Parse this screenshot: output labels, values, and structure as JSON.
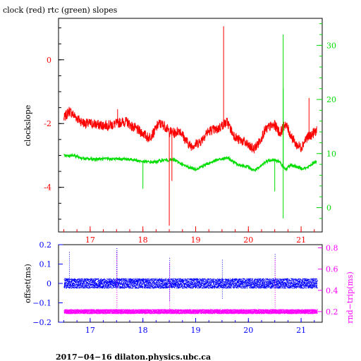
{
  "chart_data": [
    {
      "type": "line",
      "title": "clock (red) rtc (green) slopes",
      "ylabel": "clockslope",
      "y2label": "",
      "xlim": [
        16.4,
        21.4
      ],
      "ylim": [
        -5.4,
        1.3
      ],
      "y2lim": [
        -4.5,
        35
      ],
      "x_ticks": [
        "17",
        "18",
        "19",
        "20",
        "21"
      ],
      "y_ticks": [
        "0",
        "-2",
        "-4"
      ],
      "y2_ticks": [
        "0",
        "10",
        "20",
        "30"
      ],
      "colors": {
        "clock": "#ff0000",
        "rtc": "#00dd00",
        "x_axis": "#ff0000",
        "y2_axis": "#00dd00"
      },
      "series": [
        {
          "name": "clock",
          "axis": "left",
          "x": [
            16.5,
            16.6,
            16.7,
            16.8,
            16.9,
            17.0,
            17.2,
            17.4,
            17.6,
            17.7,
            17.8,
            17.9,
            18.0,
            18.1,
            18.2,
            18.3,
            18.4,
            18.5,
            18.6,
            18.7,
            18.8,
            18.9,
            19.0,
            19.1,
            19.2,
            19.3,
            19.4,
            19.5,
            19.6,
            19.7,
            19.8,
            19.9,
            20.0,
            20.1,
            20.2,
            20.3,
            20.4,
            20.5,
            20.6,
            20.7,
            20.8,
            20.9,
            21.0,
            21.1,
            21.2,
            21.3
          ],
          "values": [
            -1.85,
            -1.6,
            -1.75,
            -1.9,
            -2.0,
            -2.0,
            -2.05,
            -2.05,
            -1.95,
            -1.95,
            -2.1,
            -2.2,
            -2.3,
            -2.45,
            -2.3,
            -2.0,
            -2.05,
            -2.25,
            -2.3,
            -2.2,
            -2.5,
            -2.7,
            -2.65,
            -2.55,
            -2.3,
            -2.2,
            -2.2,
            -2.05,
            -1.95,
            -2.3,
            -2.5,
            -2.55,
            -2.7,
            -2.8,
            -2.6,
            -2.25,
            -2.1,
            -2.05,
            -2.3,
            -2.0,
            -2.35,
            -2.65,
            -2.75,
            -2.45,
            -2.35,
            -2.2
          ]
        },
        {
          "name": "rtc",
          "axis": "right",
          "x": [
            16.5,
            16.7,
            16.9,
            17.0,
            17.2,
            17.4,
            17.6,
            17.8,
            18.0,
            18.2,
            18.4,
            18.6,
            18.8,
            19.0,
            19.2,
            19.4,
            19.6,
            19.8,
            20.0,
            20.1,
            20.2,
            20.3,
            20.4,
            20.5,
            20.6,
            20.7,
            20.8,
            20.9,
            21.0,
            21.1,
            21.2,
            21.3
          ],
          "values": [
            9.6,
            9.6,
            9.0,
            9.0,
            9.0,
            9.0,
            9.0,
            8.9,
            8.5,
            8.4,
            8.8,
            8.8,
            7.7,
            7.1,
            8.0,
            8.8,
            9.2,
            8.0,
            7.5,
            6.9,
            7.3,
            8.3,
            8.8,
            8.8,
            8.4,
            7.0,
            7.9,
            7.6,
            7.3,
            7.3,
            8.0,
            8.6
          ]
        }
      ],
      "spikes": [
        {
          "series": "clock",
          "x": 17.52,
          "y": -1.55
        },
        {
          "series": "clock",
          "x": 18.5,
          "y": -5.2
        },
        {
          "series": "clock",
          "x": 18.55,
          "y": -3.8
        },
        {
          "series": "clock",
          "x": 19.53,
          "y": 1.05
        },
        {
          "series": "clock",
          "x": 21.15,
          "y": -1.2
        },
        {
          "series": "rtc",
          "x": 18.0,
          "y": 3.5
        },
        {
          "series": "rtc",
          "x": 20.5,
          "y": 3.0
        },
        {
          "series": "rtc",
          "x": 20.66,
          "y": -2.0
        },
        {
          "series": "rtc",
          "x": 20.66,
          "y": 32.0
        },
        {
          "series": "rtc",
          "x": 20.66,
          "y": 22.0
        }
      ]
    },
    {
      "type": "scatter",
      "ylabel": "offset(ms)",
      "y2label": "rnd−trip(ms)",
      "xlim": [
        16.4,
        21.4
      ],
      "ylim": [
        -0.2,
        0.2
      ],
      "y2lim": [
        0.1,
        0.83
      ],
      "x_ticks": [
        "17",
        "18",
        "19",
        "20",
        "21"
      ],
      "y_ticks": [
        "0.2",
        "0.1",
        "0",
        "−0.1",
        "−0.2"
      ],
      "y2_ticks": [
        "0.8",
        "0.6",
        "0.4",
        "0.2"
      ],
      "colors": {
        "offset": "#0000ff",
        "rnd_trip": "#ff00ff",
        "x_axis": "#0000ff",
        "y2_axis": "#ff00ff"
      },
      "series": [
        {
          "name": "offset",
          "axis": "left",
          "x_range": [
            16.5,
            21.3
          ],
          "center": 0.0,
          "spread": 0.025
        },
        {
          "name": "rnd-trip",
          "axis": "right",
          "x_range": [
            16.5,
            21.3
          ],
          "center": 0.2,
          "spread": 0.02
        }
      ],
      "outliers": [
        {
          "series": "offset",
          "x": 16.6,
          "y": 0.16
        },
        {
          "series": "offset",
          "x": 17.5,
          "y": 0.18
        },
        {
          "series": "offset",
          "x": 18.5,
          "y": 0.13
        },
        {
          "series": "offset",
          "x": 19.5,
          "y": 0.12
        },
        {
          "series": "offset",
          "x": 20.5,
          "y": 0.15
        },
        {
          "series": "offset",
          "x": 18.5,
          "y": -0.09
        },
        {
          "series": "offset",
          "x": 19.5,
          "y": -0.08
        },
        {
          "series": "rnd-trip",
          "x": 17.5,
          "y": 0.76
        },
        {
          "series": "rnd-trip",
          "x": 18.5,
          "y": 0.65
        },
        {
          "series": "rnd-trip",
          "x": 20.5,
          "y": 0.7
        }
      ]
    }
  ],
  "footer": "2017−04−16  dilaton.physics.ubc.ca"
}
